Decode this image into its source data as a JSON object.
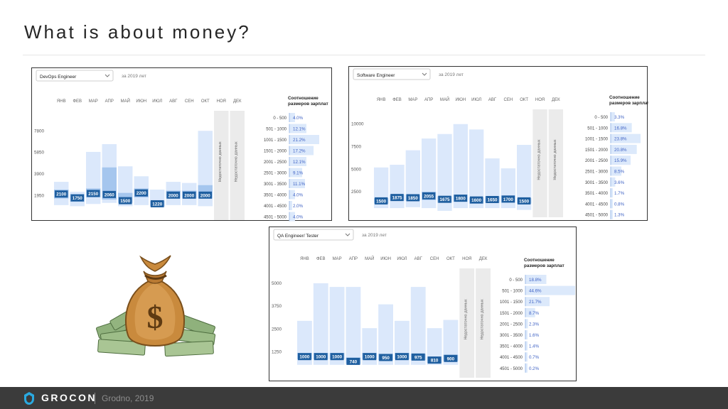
{
  "slide": {
    "title": "What is about money?",
    "footer_brand": "GROCON",
    "footer_sub": "Grodno, 2019"
  },
  "icons": {
    "logo": "grocon-logo-icon",
    "illustration": "money-bag-icon"
  },
  "colors": {
    "bar_light": "#dbe8fb",
    "bar_mid": "#c5dbf7",
    "bar_dark": "#a5c6ee",
    "label_box": "#1f5fa0",
    "dist_bar": "#dce9fb",
    "dist_text": "#3f62c4",
    "no_data": "#ebebeb",
    "footer_bg": "#3b3b3b"
  },
  "chart_data": [
    {
      "type": "bar",
      "dropdown": "DevOps Engineer",
      "period": "за 2019 лет",
      "categories": [
        "ЯНВ",
        "ФЕВ",
        "МАР",
        "АПР",
        "МАЙ",
        "ИЮН",
        "ИЮЛ",
        "АВГ",
        "СЕН",
        "ОКТ",
        "НОЯ",
        "ДЕК"
      ],
      "y_ticks": [
        "7800",
        "5850",
        "3900",
        "1950"
      ],
      "y_tick_values": [
        7800,
        5850,
        3900,
        1950
      ],
      "ylim": [
        0,
        9100
      ],
      "median": [
        2100,
        1750,
        2150,
        2060,
        1500,
        2200,
        1220,
        2000,
        2000,
        2000,
        null,
        null
      ],
      "median_labels": [
        "2100",
        "1750",
        "2150",
        "2060",
        "1500",
        "2200",
        "1220",
        "2000",
        "2000",
        "2000",
        "",
        ""
      ],
      "range_low": [
        1100,
        1000,
        1200,
        1300,
        1000,
        1100,
        900,
        1100,
        1100,
        1000,
        null,
        null
      ],
      "range_high": [
        3200,
        2300,
        5900,
        6600,
        4600,
        3700,
        2500,
        3200,
        3100,
        7800,
        null,
        null
      ],
      "mid_low": [
        1700,
        1400,
        1800,
        1600,
        1300,
        1800,
        1000,
        1700,
        1700,
        1700,
        null,
        null
      ],
      "mid_high": [
        2500,
        2100,
        2600,
        4500,
        2200,
        2600,
        1500,
        2400,
        2400,
        2900,
        null,
        null
      ],
      "no_data_label": "Недостаточно данных",
      "distribution_title": [
        "Соотношение",
        "размеров зарплат"
      ],
      "distribution": [
        {
          "range": "0 - 500",
          "value": "4.0%",
          "pct": 4.0
        },
        {
          "range": "501 - 1000",
          "value": "12.1%",
          "pct": 12.1
        },
        {
          "range": "1001 - 1500",
          "value": "21.2%",
          "pct": 21.2
        },
        {
          "range": "1501 - 2000",
          "value": "17.2%",
          "pct": 17.2
        },
        {
          "range": "2001 - 2500",
          "value": "12.1%",
          "pct": 12.1
        },
        {
          "range": "2501 - 3000",
          "value": "9.1%",
          "pct": 9.1
        },
        {
          "range": "3001 - 3500",
          "value": "11.1%",
          "pct": 11.1
        },
        {
          "range": "3501 - 4000",
          "value": "4.0%",
          "pct": 4.0
        },
        {
          "range": "4001 - 4500",
          "value": "2.0%",
          "pct": 2.0
        },
        {
          "range": "4501 - 5000",
          "value": "4.0%",
          "pct": 4.0
        }
      ]
    },
    {
      "type": "bar",
      "dropdown": "Software Engineer",
      "period": "за 2019 лет",
      "categories": [
        "ЯНВ",
        "ФЕВ",
        "МАР",
        "АПР",
        "МАЙ",
        "ИЮН",
        "ИЮЛ",
        "АВГ",
        "СЕН",
        "ОКТ",
        "НОЯ",
        "ДЕК"
      ],
      "y_ticks": [
        "10000",
        "7500",
        "5000",
        "2500"
      ],
      "y_tick_values": [
        10000,
        7500,
        5000,
        2500
      ],
      "ylim": [
        0,
        11000
      ],
      "median": [
        1500,
        1875,
        1850,
        2055,
        1675,
        1800,
        1600,
        1650,
        1700,
        1500,
        null,
        null
      ],
      "median_labels": [
        "1500",
        "1875",
        "1850",
        "2055",
        "1675",
        "1800",
        "1600",
        "1650",
        "1700",
        "1500",
        "",
        ""
      ],
      "range_low": [
        700,
        700,
        800,
        700,
        400,
        700,
        700,
        700,
        700,
        500,
        null,
        null
      ],
      "range_high": [
        5200,
        5500,
        7100,
        8400,
        8900,
        10000,
        9400,
        6200,
        5100,
        7700,
        null,
        null
      ],
      "mid_low": [
        1200,
        1500,
        1500,
        1600,
        1300,
        1400,
        1200,
        1300,
        1300,
        1200,
        null,
        null
      ],
      "mid_high": [
        1800,
        2200,
        2200,
        2500,
        2000,
        2200,
        1900,
        2000,
        2100,
        1800,
        null,
        null
      ],
      "no_data_label": "Недостаточно данных",
      "distribution_title": [
        "Соотношение",
        "размеров зарплат"
      ],
      "distribution": [
        {
          "range": "0 - 500",
          "value": "3.3%",
          "pct": 3.3
        },
        {
          "range": "501 - 1000",
          "value": "16.8%",
          "pct": 16.8
        },
        {
          "range": "1001 - 1500",
          "value": "23.8%",
          "pct": 23.8
        },
        {
          "range": "1501 - 2000",
          "value": "20.8%",
          "pct": 20.8
        },
        {
          "range": "2001 - 2500",
          "value": "15.9%",
          "pct": 15.9
        },
        {
          "range": "2501 - 3000",
          "value": "8.5%",
          "pct": 8.5
        },
        {
          "range": "3001 - 3500",
          "value": "3.6%",
          "pct": 3.6
        },
        {
          "range": "3501 - 4000",
          "value": "1.7%",
          "pct": 1.7
        },
        {
          "range": "4001 - 4500",
          "value": "0.8%",
          "pct": 0.8
        },
        {
          "range": "4501 - 5000",
          "value": "1.3%",
          "pct": 1.3
        }
      ]
    },
    {
      "type": "bar",
      "dropdown": "QA Engineer/ Tester",
      "period": "за 2019 лет",
      "categories": [
        "ЯНВ",
        "ФЕВ",
        "МАР",
        "АПР",
        "МАЙ",
        "ИЮН",
        "ИЮЛ",
        "АВГ",
        "СЕН",
        "ОКТ",
        "НОЯ",
        "ДЕК"
      ],
      "y_ticks": [
        "5000",
        "3750",
        "2500",
        "1250"
      ],
      "y_tick_values": [
        5000,
        3750,
        2500,
        1250
      ],
      "ylim": [
        0,
        5500
      ],
      "median": [
        1000,
        1000,
        1000,
        740,
        1000,
        950,
        1000,
        975,
        810,
        900,
        null,
        null
      ],
      "median_labels": [
        "1000",
        "1000",
        "1000",
        "740",
        "1000",
        "950",
        "1000",
        "975",
        "810",
        "900",
        "",
        ""
      ],
      "range_low": [
        550,
        550,
        550,
        550,
        550,
        550,
        550,
        550,
        550,
        550,
        null,
        null
      ],
      "range_high": [
        2950,
        5000,
        4800,
        4800,
        2550,
        3850,
        2950,
        4800,
        2550,
        3000,
        null,
        null
      ],
      "mid_low": [
        850,
        850,
        850,
        600,
        850,
        800,
        850,
        800,
        650,
        750,
        null,
        null
      ],
      "mid_high": [
        1200,
        1200,
        1200,
        950,
        1200,
        1150,
        1200,
        1150,
        1000,
        1100,
        null,
        null
      ],
      "no_data_label": "Недостаточно данных",
      "distribution_title": [
        "Соотношение",
        "размеров зарплат"
      ],
      "distribution": [
        {
          "range": "0 - 500",
          "value": "18.8%",
          "pct": 18.8
        },
        {
          "range": "501 - 1000",
          "value": "44.6%",
          "pct": 44.6
        },
        {
          "range": "1001 - 1500",
          "value": "21.7%",
          "pct": 21.7
        },
        {
          "range": "1501 - 2000",
          "value": "8.7%",
          "pct": 8.7
        },
        {
          "range": "2001 - 2500",
          "value": "2.3%",
          "pct": 2.3
        },
        {
          "range": "3001 - 3500",
          "value": "1.6%",
          "pct": 1.6
        },
        {
          "range": "3501 - 4000",
          "value": "1.4%",
          "pct": 1.4
        },
        {
          "range": "4001 - 4500",
          "value": "0.7%",
          "pct": 0.7
        },
        {
          "range": "4501 - 5000",
          "value": "0.2%",
          "pct": 0.2
        }
      ]
    }
  ]
}
